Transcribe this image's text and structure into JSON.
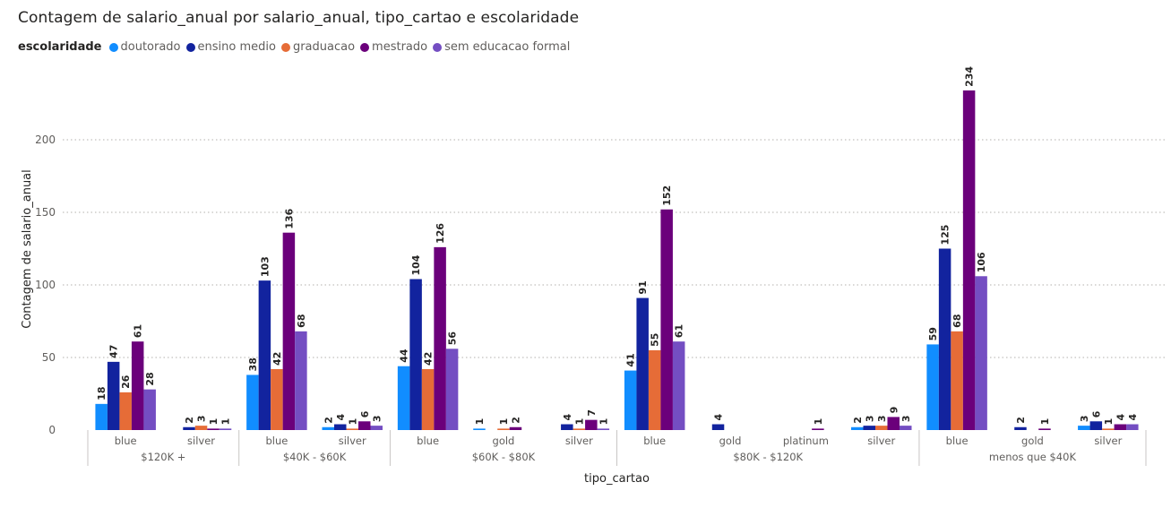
{
  "chart_data": {
    "type": "bar",
    "title": "Contagem de salario_anual por salario_anual, tipo_cartao e escolaridade",
    "xlabel": "tipo_cartao",
    "ylabel": "Contagem de salario_anual",
    "ylim": [
      0,
      250
    ],
    "yticks": [
      0,
      50,
      100,
      150,
      200
    ],
    "grid": true,
    "legend": {
      "title": "escolaridade",
      "position": "top-left"
    },
    "series": [
      {
        "name": "doutorado",
        "color": "#118DFF"
      },
      {
        "name": "ensino medio",
        "color": "#12239E"
      },
      {
        "name": "graduacao",
        "color": "#E66C37"
      },
      {
        "name": "mestrado",
        "color": "#6B007B"
      },
      {
        "name": "sem educacao formal",
        "color": "#744EC2"
      }
    ],
    "groups": [
      {
        "label": "$120K +",
        "categories": [
          {
            "label": "blue",
            "values": [
              18,
              47,
              26,
              61,
              28
            ]
          },
          {
            "label": "silver",
            "values": [
              null,
              2,
              3,
              1,
              1
            ]
          }
        ]
      },
      {
        "label": "$40K - $60K",
        "categories": [
          {
            "label": "blue",
            "values": [
              38,
              103,
              42,
              136,
              68
            ]
          },
          {
            "label": "silver",
            "values": [
              2,
              4,
              1,
              6,
              3
            ]
          }
        ]
      },
      {
        "label": "$60K - $80K",
        "categories": [
          {
            "label": "blue",
            "values": [
              44,
              104,
              42,
              126,
              56
            ]
          },
          {
            "label": "gold",
            "values": [
              1,
              null,
              1,
              2,
              null
            ]
          },
          {
            "label": "silver",
            "values": [
              null,
              4,
              1,
              7,
              1
            ]
          }
        ]
      },
      {
        "label": "$80K - $120K",
        "categories": [
          {
            "label": "blue",
            "values": [
              41,
              91,
              55,
              152,
              61
            ]
          },
          {
            "label": "gold",
            "values": [
              null,
              4,
              null,
              null,
              null
            ]
          },
          {
            "label": "platinum",
            "values": [
              null,
              null,
              null,
              1,
              null
            ]
          },
          {
            "label": "silver",
            "values": [
              2,
              3,
              3,
              9,
              3
            ]
          }
        ]
      },
      {
        "label": "menos que $40K",
        "categories": [
          {
            "label": "blue",
            "values": [
              59,
              125,
              68,
              234,
              106
            ]
          },
          {
            "label": "gold",
            "values": [
              null,
              2,
              null,
              1,
              null
            ]
          },
          {
            "label": "silver",
            "values": [
              3,
              6,
              1,
              4,
              4
            ]
          }
        ]
      }
    ]
  }
}
